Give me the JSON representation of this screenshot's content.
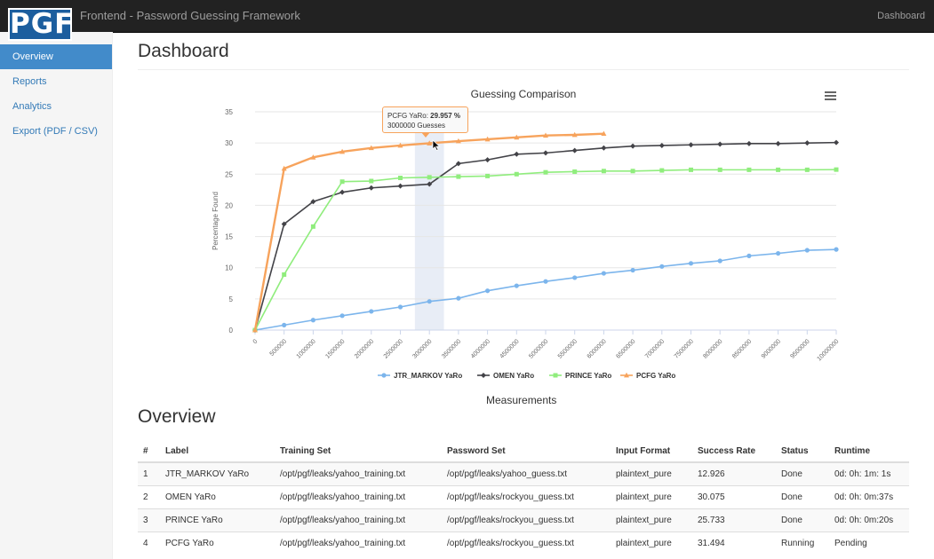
{
  "navbar": {
    "logo": "PGF",
    "brand": "Frontend - Password Guessing Framework",
    "right_link": "Dashboard"
  },
  "sidebar": {
    "items": [
      {
        "label": "Overview",
        "active": true
      },
      {
        "label": "Reports",
        "active": false
      },
      {
        "label": "Analytics",
        "active": false
      },
      {
        "label": "Export (PDF / CSV)",
        "active": false
      }
    ]
  },
  "page": {
    "title": "Dashboard",
    "chart_caption": "Measurements",
    "section_title": "Overview"
  },
  "tooltip": {
    "series": "PCFG YaRo: ",
    "value": "29.957 %",
    "guesses": "3000000 Guesses"
  },
  "colors": {
    "jtr": "#7cb5ec",
    "omen": "#434348",
    "prince": "#90ed7d",
    "pcfg": "#f7a35c",
    "accent": "#428bca"
  },
  "chart_data": {
    "type": "line",
    "title": "Guessing Comparison",
    "ylabel": "Percentage Found",
    "xlabel": "",
    "ylim": [
      0,
      35
    ],
    "yticks": [
      0,
      5,
      10,
      15,
      20,
      25,
      30,
      35
    ],
    "xticks": [
      0,
      500000,
      1000000,
      1500000,
      2000000,
      2500000,
      3000000,
      3500000,
      4000000,
      4500000,
      5000000,
      5500000,
      6000000,
      6500000,
      7000000,
      7500000,
      8000000,
      8500000,
      9000000,
      9500000,
      10000000
    ],
    "legend_position": "bottom",
    "highlight_band": [
      2750000,
      3250000
    ],
    "series": [
      {
        "name": "JTR_MARKOV YaRo",
        "marker": "circle",
        "x": [
          0,
          500000,
          1000000,
          1500000,
          2000000,
          2500000,
          3000000,
          3500000,
          4000000,
          4500000,
          5000000,
          5500000,
          6000000,
          6500000,
          7000000,
          7500000,
          8000000,
          8500000,
          9000000,
          9500000,
          10000000
        ],
        "y": [
          0,
          0.8,
          1.6,
          2.3,
          3.0,
          3.7,
          4.6,
          5.1,
          6.3,
          7.1,
          7.8,
          8.4,
          9.1,
          9.6,
          10.2,
          10.7,
          11.1,
          11.9,
          12.3,
          12.8,
          12.926
        ]
      },
      {
        "name": "OMEN YaRo",
        "marker": "diamond",
        "x": [
          0,
          500000,
          1000000,
          1500000,
          2000000,
          2500000,
          3000000,
          3500000,
          4000000,
          4500000,
          5000000,
          5500000,
          6000000,
          6500000,
          7000000,
          7500000,
          8000000,
          8500000,
          9000000,
          9500000,
          10000000
        ],
        "y": [
          0,
          17.0,
          20.6,
          22.1,
          22.8,
          23.1,
          23.4,
          26.7,
          27.3,
          28.2,
          28.4,
          28.8,
          29.2,
          29.5,
          29.6,
          29.7,
          29.8,
          29.9,
          29.9,
          30.0,
          30.075
        ]
      },
      {
        "name": "PRINCE YaRo",
        "marker": "square",
        "x": [
          0,
          500000,
          1000000,
          1500000,
          2000000,
          2500000,
          3000000,
          3500000,
          4000000,
          4500000,
          5000000,
          5500000,
          6000000,
          6500000,
          7000000,
          7500000,
          8000000,
          8500000,
          9000000,
          9500000,
          10000000
        ],
        "y": [
          0,
          8.9,
          16.6,
          23.8,
          23.9,
          24.4,
          24.5,
          24.6,
          24.7,
          25.0,
          25.3,
          25.4,
          25.5,
          25.5,
          25.6,
          25.7,
          25.7,
          25.7,
          25.7,
          25.7,
          25.733
        ]
      },
      {
        "name": "PCFG YaRo",
        "marker": "triangle",
        "x": [
          0,
          500000,
          1000000,
          1500000,
          2000000,
          2500000,
          3000000,
          3500000,
          4000000,
          4500000,
          5000000,
          5500000,
          6000000
        ],
        "y": [
          0,
          25.9,
          27.7,
          28.6,
          29.2,
          29.6,
          29.957,
          30.3,
          30.6,
          30.9,
          31.2,
          31.3,
          31.494
        ]
      }
    ]
  },
  "table": {
    "headers": [
      "#",
      "Label",
      "Training Set",
      "Password Set",
      "Input Format",
      "Success Rate",
      "Status",
      "Runtime"
    ],
    "rows": [
      [
        "1",
        "JTR_MARKOV YaRo",
        "/opt/pgf/leaks/yahoo_training.txt",
        "/opt/pgf/leaks/yahoo_guess.txt",
        "plaintext_pure",
        "12.926",
        "Done",
        "0d: 0h: 1m: 1s"
      ],
      [
        "2",
        "OMEN YaRo",
        "/opt/pgf/leaks/yahoo_training.txt",
        "/opt/pgf/leaks/rockyou_guess.txt",
        "plaintext_pure",
        "30.075",
        "Done",
        "0d: 0h: 0m:37s"
      ],
      [
        "3",
        "PRINCE YaRo",
        "/opt/pgf/leaks/yahoo_training.txt",
        "/opt/pgf/leaks/rockyou_guess.txt",
        "plaintext_pure",
        "25.733",
        "Done",
        "0d: 0h: 0m:20s"
      ],
      [
        "4",
        "PCFG YaRo",
        "/opt/pgf/leaks/yahoo_training.txt",
        "/opt/pgf/leaks/rockyou_guess.txt",
        "plaintext_pure",
        "31.494",
        "Running",
        "Pending"
      ]
    ]
  }
}
